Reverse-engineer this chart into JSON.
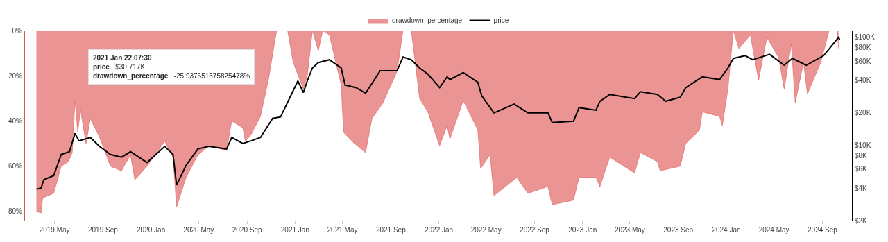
{
  "chart_data": {
    "type": "area",
    "legend": "top",
    "grid": "y",
    "xlim": [
      "2019-02-15",
      "2024-11-15"
    ],
    "xticks": [
      {
        "value": "2019-05-01",
        "label": "2019 May"
      },
      {
        "value": "2019-09-01",
        "label": "2019 Sep"
      },
      {
        "value": "2020-01-01",
        "label": "2020 Jan"
      },
      {
        "value": "2020-05-01",
        "label": "2020 May"
      },
      {
        "value": "2020-09-01",
        "label": "2020 Sep"
      },
      {
        "value": "2021-01-01",
        "label": "2021 Jan"
      },
      {
        "value": "2021-05-01",
        "label": "2021 May"
      },
      {
        "value": "2021-09-01",
        "label": "2021 Sep"
      },
      {
        "value": "2022-01-01",
        "label": "2022 Jan"
      },
      {
        "value": "2022-05-01",
        "label": "2022 May"
      },
      {
        "value": "2022-09-01",
        "label": "2022 Sep"
      },
      {
        "value": "2023-01-01",
        "label": "2023 Jan"
      },
      {
        "value": "2023-05-01",
        "label": "2023 May"
      },
      {
        "value": "2023-09-01",
        "label": "2023 Sep"
      },
      {
        "value": "2024-01-01",
        "label": "2024 Jan"
      },
      {
        "value": "2024-05-01",
        "label": "2024 May"
      },
      {
        "value": "2024-09-01",
        "label": "2024 Sep"
      }
    ],
    "ylim": [
      -84,
      0
    ],
    "yticks": [
      {
        "value": 0,
        "label": "0%"
      },
      {
        "value": -20,
        "label": "20%"
      },
      {
        "value": -40,
        "label": "40%"
      },
      {
        "value": -60,
        "label": "60%"
      },
      {
        "value": -80,
        "label": "80%"
      }
    ],
    "log": "y2",
    "y2lim": [
      2000,
      115600
    ],
    "y2ticks": [
      {
        "value": 2000,
        "label": "$2K"
      },
      {
        "value": 4000,
        "label": "$4K"
      },
      {
        "value": 6000,
        "label": "$6K"
      },
      {
        "value": 8000,
        "label": "$8K"
      },
      {
        "value": 10000,
        "label": "$10K"
      },
      {
        "value": 20000,
        "label": "$20K"
      },
      {
        "value": 40000,
        "label": "$40K"
      },
      {
        "value": 60000,
        "label": "$60K"
      },
      {
        "value": 80000,
        "label": "$80K"
      },
      {
        "value": 100000,
        "label": "$100K"
      }
    ],
    "annotations": [
      "2021 Jan 22 07:30",
      "price",
      "$30.717K",
      "drawdown_percentage",
      "-25.937651675825478%"
    ],
    "series": [
      {
        "name": "drawdown_percentage",
        "type": "area",
        "color": "#e05a5a",
        "x": [
          "2019-03-16",
          "2019-03-28",
          "2019-04-01",
          "2019-04-29",
          "2019-05-18",
          "2019-06-05",
          "2019-06-15",
          "2019-06-22",
          "2019-06-29",
          "2019-07-06",
          "2019-07-20",
          "2019-07-31",
          "2019-08-23",
          "2019-09-20",
          "2019-10-18",
          "2019-11-10",
          "2019-11-21",
          "2019-12-22",
          "2020-02-05",
          "2020-02-26",
          "2020-03-06",
          "2020-03-30",
          "2020-04-29",
          "2020-05-27",
          "2020-07-11",
          "2020-07-24",
          "2020-08-21",
          "2020-08-28",
          "2020-09-11",
          "2020-10-05",
          "2020-10-25",
          "2020-11-15",
          "2020-12-13",
          "2020-12-27",
          "2021-01-22",
          "2021-02-01",
          "2021-02-14",
          "2021-03-01",
          "2021-03-12",
          "2021-03-29",
          "2021-04-28",
          "2021-05-04",
          "2021-06-01",
          "2021-06-29",
          "2021-07-15",
          "2021-08-12",
          "2021-09-17",
          "2021-10-02",
          "2021-10-23",
          "2021-11-13",
          "2021-12-04",
          "2022-01-03",
          "2022-01-22",
          "2022-01-29",
          "2022-03-04",
          "2022-04-10",
          "2022-04-17",
          "2022-05-11",
          "2022-05-21",
          "2022-07-18",
          "2022-08-15",
          "2022-10-05",
          "2022-10-16",
          "2022-12-09",
          "2022-12-23",
          "2023-02-04",
          "2023-02-14",
          "2023-03-11",
          "2023-05-13",
          "2023-05-28",
          "2023-07-10",
          "2023-07-17",
          "2023-09-06",
          "2023-09-20",
          "2023-10-25",
          "2023-11-01",
          "2023-12-15",
          "2023-12-22",
          "2024-01-05",
          "2024-01-19",
          "2024-02-02",
          "2024-03-02",
          "2024-03-23",
          "2024-04-13",
          "2024-05-13",
          "2024-05-27",
          "2024-06-14",
          "2024-06-24",
          "2024-07-15",
          "2024-07-25",
          "2024-08-28",
          "2024-09-18",
          "2024-10-09",
          "2024-10-12"
        ],
        "values": [
          -80,
          -80.6,
          -74,
          -72,
          -60,
          -58,
          -54,
          -31,
          -45,
          -35,
          -50,
          -39,
          -47,
          -60,
          -62,
          -55,
          -66,
          -60,
          -49,
          -56,
          -78,
          -65,
          -55,
          -51,
          -53,
          -40,
          -43,
          -49,
          -46,
          -38,
          -22,
          0,
          0,
          -14,
          -25.9,
          -20,
          0,
          -9,
          0,
          -2,
          -24,
          -45,
          -50,
          -54,
          -39,
          -32,
          -18,
          0,
          0,
          -30,
          -36,
          -51,
          -42,
          -48,
          -31,
          -44,
          -61,
          -55,
          -73,
          -65,
          -72,
          -69,
          -77,
          -75,
          -65,
          -65,
          -69,
          -56,
          -63,
          -54,
          -58,
          -62,
          -60,
          -50,
          -44,
          -36,
          -38,
          -42,
          -26,
          0,
          -8,
          -2,
          -22,
          -3,
          -12,
          -26,
          -6,
          -32,
          -14,
          -28,
          -14,
          0,
          0,
          -8
        ]
      },
      {
        "name": "price",
        "type": "line",
        "axis": "y2",
        "color": "#000000",
        "x": [
          "2019-03-16",
          "2019-03-28",
          "2019-04-04",
          "2019-04-29",
          "2019-05-18",
          "2019-06-08",
          "2019-06-22",
          "2019-07-02",
          "2019-07-31",
          "2019-08-23",
          "2019-09-20",
          "2019-10-18",
          "2019-11-10",
          "2019-12-22",
          "2020-02-05",
          "2020-02-26",
          "2020-03-06",
          "2020-03-30",
          "2020-04-29",
          "2020-05-27",
          "2020-07-11",
          "2020-07-24",
          "2020-08-21",
          "2020-09-11",
          "2020-10-05",
          "2020-11-05",
          "2020-11-25",
          "2021-01-08",
          "2021-01-22",
          "2021-02-01",
          "2021-02-14",
          "2021-03-01",
          "2021-03-29",
          "2021-04-28",
          "2021-05-08",
          "2021-06-05",
          "2021-06-29",
          "2021-08-05",
          "2021-09-17",
          "2021-10-02",
          "2021-10-23",
          "2021-11-13",
          "2021-12-04",
          "2022-01-03",
          "2022-01-22",
          "2022-01-29",
          "2022-03-04",
          "2022-04-10",
          "2022-04-20",
          "2022-05-21",
          "2022-07-11",
          "2022-08-15",
          "2022-10-05",
          "2022-10-16",
          "2022-12-09",
          "2022-12-23",
          "2023-02-04",
          "2023-02-14",
          "2023-03-11",
          "2023-05-13",
          "2023-05-28",
          "2023-07-10",
          "2023-07-31",
          "2023-09-06",
          "2023-09-20",
          "2023-11-01",
          "2023-12-15",
          "2024-01-05",
          "2024-01-19",
          "2024-02-18",
          "2024-03-08",
          "2024-04-20",
          "2024-05-27",
          "2024-06-17",
          "2024-07-22",
          "2024-09-04",
          "2024-10-12",
          "2024-10-15"
        ],
        "values": [
          3900,
          4020,
          4790,
          5220,
          8190,
          8690,
          12850,
          10960,
          11780,
          9750,
          8190,
          7730,
          8690,
          6890,
          9750,
          8190,
          4260,
          6490,
          9210,
          9750,
          9210,
          11780,
          10350,
          10960,
          11780,
          17700,
          18240,
          39400,
          30717,
          39400,
          52000,
          58300,
          61900,
          52000,
          36100,
          34100,
          30300,
          49000,
          49000,
          65600,
          61900,
          52000,
          45600,
          34100,
          43000,
          40600,
          47000,
          38300,
          28600,
          19900,
          24000,
          19900,
          19900,
          16200,
          16700,
          22300,
          21100,
          25500,
          29500,
          27000,
          31300,
          29500,
          25500,
          27800,
          34100,
          43000,
          40600,
          52000,
          63700,
          67500,
          61900,
          69500,
          55100,
          63700,
          55100,
          67500,
          100000,
          95000
        ]
      }
    ]
  }
}
